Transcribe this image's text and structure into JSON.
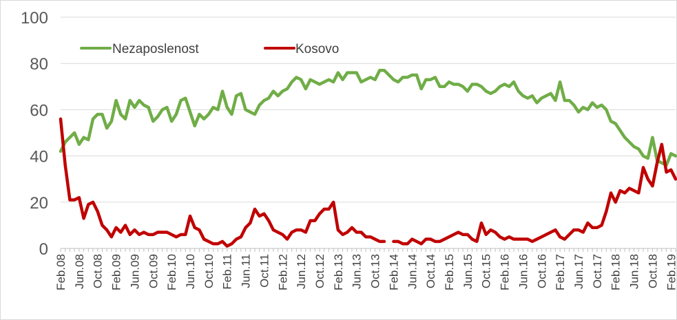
{
  "chart_data": {
    "type": "line",
    "ylim": [
      0,
      100
    ],
    "yticks": [
      0,
      20,
      40,
      60,
      80,
      100
    ],
    "xtick_labels": [
      "Feb.08",
      "Jun.08",
      "Oct.08",
      "Feb.09",
      "Jun.09",
      "Oct.09",
      "Feb.10",
      "Jun.10",
      "Oct.10",
      "Feb.11",
      "Jun.11",
      "Oct.11",
      "Feb.12",
      "Jun.12",
      "Oct.12",
      "Feb.13",
      "Jun.13",
      "Oct.13",
      "Feb.14",
      "Jun.14",
      "Oct.14",
      "Feb.15",
      "Jun.15",
      "Oct.15",
      "Feb.16",
      "Jun.16",
      "Oct.16",
      "Feb.17",
      "Jun.17",
      "Oct.17",
      "Feb.18",
      "Jun.18",
      "Oct.18",
      "Feb.19"
    ],
    "x_start": "Feb.08",
    "legend_position": "top-left",
    "grid": "horizontal",
    "series": [
      {
        "name": "Nezaposlenost",
        "color": "#70ad47",
        "values": [
          42,
          46,
          48,
          50,
          45,
          48,
          47,
          56,
          58,
          58,
          52,
          55,
          64,
          58,
          56,
          64,
          61,
          64,
          62,
          61,
          55,
          57,
          60,
          61,
          55,
          58,
          64,
          65,
          59,
          53,
          58,
          56,
          58,
          61,
          60,
          68,
          61,
          58,
          66,
          67,
          60,
          59,
          58,
          62,
          64,
          65,
          68,
          66,
          68,
          69,
          72,
          74,
          73,
          69,
          73,
          72,
          71,
          72,
          73,
          72,
          76,
          73,
          76,
          76,
          76,
          72,
          73,
          74,
          73,
          77,
          77,
          75,
          73,
          72,
          74,
          74,
          75,
          75,
          69,
          73,
          73,
          74,
          70,
          70,
          72,
          71,
          71,
          70,
          68,
          71,
          71,
          70,
          68,
          67,
          68,
          70,
          71,
          70,
          72,
          68,
          66,
          65,
          66,
          63,
          65,
          66,
          67,
          64,
          72,
          64,
          64,
          62,
          59,
          61,
          60,
          63,
          61,
          62,
          60,
          55,
          54,
          51,
          48,
          46,
          44,
          43,
          40,
          39,
          48,
          38,
          37,
          36,
          41,
          40
        ],
        "gaps": []
      },
      {
        "name": "Kosovo",
        "color": "#c00000",
        "values": [
          56,
          36,
          21,
          21,
          22,
          13,
          19,
          20,
          16,
          10,
          8,
          5,
          9,
          7,
          10,
          6,
          8,
          6,
          7,
          6,
          6,
          7,
          7,
          7,
          6,
          5,
          6,
          6,
          14,
          9,
          8,
          4,
          3,
          2,
          2,
          3,
          1,
          2,
          4,
          5,
          9,
          11,
          17,
          14,
          15,
          12,
          8,
          7,
          6,
          4,
          7,
          8,
          8,
          7,
          12,
          12,
          15,
          17,
          17,
          20,
          8,
          6,
          7,
          9,
          7,
          7,
          5,
          5,
          4,
          3,
          3,
          null,
          3,
          3,
          2,
          2,
          4,
          3,
          2,
          4,
          4,
          3,
          3,
          4,
          5,
          6,
          7,
          6,
          6,
          4,
          3,
          11,
          6,
          8,
          7,
          5,
          4,
          5,
          4,
          4,
          4,
          4,
          3,
          4,
          5,
          6,
          7,
          8,
          5,
          4,
          6,
          8,
          8,
          7,
          11,
          9,
          9,
          10,
          16,
          24,
          20,
          25,
          24,
          26,
          25,
          24,
          35,
          30,
          27,
          37,
          45,
          33,
          34,
          30
        ],
        "gaps": [
          71
        ]
      }
    ]
  }
}
